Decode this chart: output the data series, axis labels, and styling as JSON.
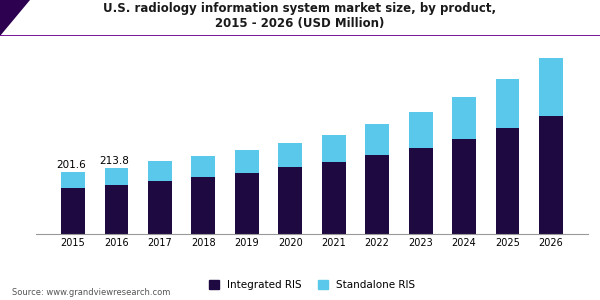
{
  "title": "U.S. radiology information system market size, by product,\n2015 - 2026 (USD Million)",
  "years": [
    2015,
    2016,
    2017,
    2018,
    2019,
    2020,
    2021,
    2022,
    2023,
    2024,
    2025,
    2026
  ],
  "integrated_ris": [
    148,
    158,
    172,
    185,
    196,
    215,
    232,
    255,
    278,
    308,
    342,
    382
  ],
  "standalone_ris": [
    53.6,
    55.8,
    62,
    68,
    74,
    80,
    88,
    100,
    115,
    135,
    158,
    185
  ],
  "annotations": {
    "2015": "201.6",
    "2016": "213.8"
  },
  "color_integrated": "#1e0a40",
  "color_standalone": "#5ac8ea",
  "color_background": "#ffffff",
  "header_color": "#4b0070",
  "bar_width": 0.55,
  "ylim": [
    0,
    600
  ],
  "source_text": "Source: www.grandviewresearch.com",
  "legend_integrated": "Integrated RIS",
  "legend_standalone": "Standalone RIS",
  "title_fontsize": 8.5,
  "tick_fontsize": 7,
  "source_fontsize": 6,
  "legend_fontsize": 7.5,
  "anno_fontsize": 7.5
}
